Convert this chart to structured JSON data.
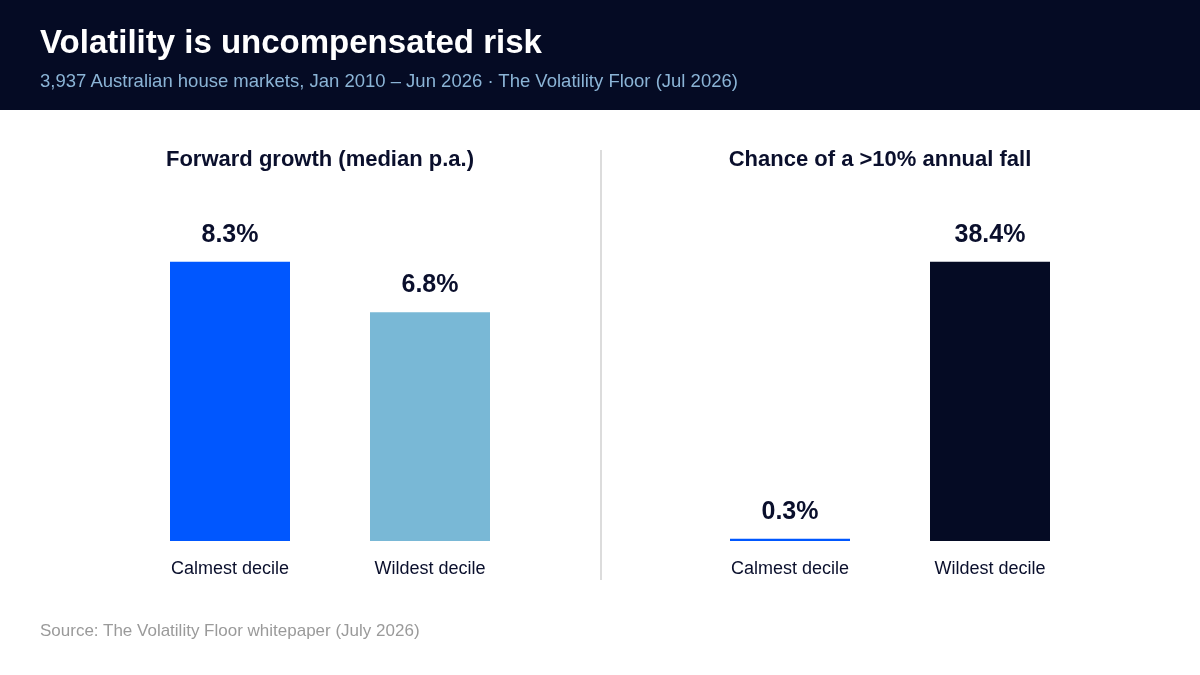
{
  "chart_data": [
    {
      "type": "bar",
      "title": "Forward growth (median p.a.)",
      "categories": [
        "Calmest decile",
        "Wildest decile"
      ],
      "values": [
        8.3,
        6.8
      ],
      "colors": [
        "#0057ff",
        "#79b8d6"
      ],
      "value_labels": [
        "8.3%",
        "6.8%"
      ],
      "tick_labels": "x",
      "annotations": [
        "Volatility is uncompensated risk",
        "3,937 Australian house markets, Jan 2010 – Jun 2026 · The Volatility Floor (Jul 2026)",
        "Source: The Volatility Floor whitepaper (July 2026)"
      ]
    },
    {
      "type": "bar",
      "title": "Chance of a >10% annual fall",
      "categories": [
        "Calmest decile",
        "Wildest decile"
      ],
      "values": [
        0.3,
        38.4
      ],
      "colors": [
        "#0057ff",
        "#050b24"
      ],
      "value_labels": [
        "0.3%",
        "38.4%"
      ],
      "tick_labels": "x"
    }
  ]
}
